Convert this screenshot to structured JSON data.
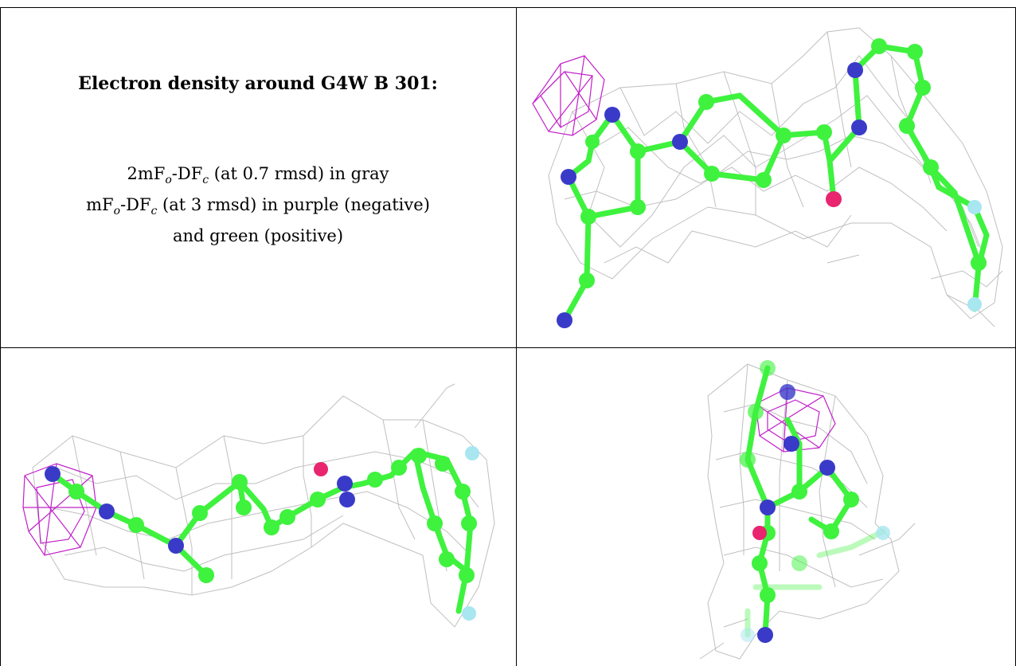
{
  "title": "Electron density around G4W B 301:",
  "lines": [
    {
      "main": "2mF",
      "sub1": "o",
      "mid": "-DF",
      "sub2": "c",
      "rest": " (at 0.7 rmsd) in gray"
    },
    {
      "main": "mF",
      "sub1": "o",
      "mid": "-DF",
      "sub2": "c",
      "rest": " (at 3 rmsd) in purple (negative)"
    },
    {
      "text": "and green (positive)"
    }
  ],
  "colors": {
    "carbon": "#3ef23e",
    "nitrogen": "#3a3ac8",
    "oxygen": "#e8256e",
    "fluorine": "#a8e6f0",
    "mesh_2fofc": "#b4b4b4",
    "mesh_negative": "#c020c8"
  },
  "panels": [
    "view-top-right",
    "view-bottom-left",
    "view-bottom-right"
  ]
}
